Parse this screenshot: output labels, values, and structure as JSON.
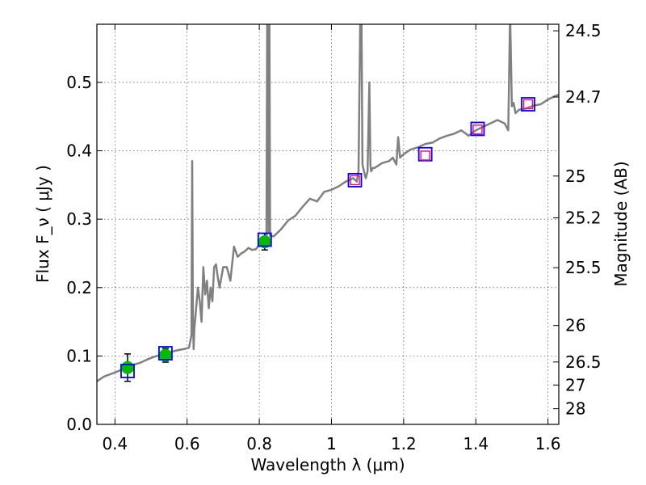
{
  "chart_data": {
    "type": "scatter",
    "xlabel": "Wavelength  λ (μm)",
    "ylabel": "Flux  F_ν  ( μJy )",
    "ylabel_right": "Magnitude (AB)",
    "xlim": [
      0.35,
      1.63
    ],
    "ylim": [
      0.0,
      0.585
    ],
    "grid": true,
    "x_ticks": [
      0.4,
      0.6,
      0.8,
      1.0,
      1.2,
      1.4,
      1.6
    ],
    "x_tick_labels": [
      "0.4",
      "0.6",
      "0.8",
      "1",
      "1.2",
      "1.4",
      "1.6"
    ],
    "y_ticks": [
      0.0,
      0.1,
      0.2,
      0.3,
      0.4,
      0.5
    ],
    "y_tick_labels": [
      "0.0",
      "0.1",
      "0.2",
      "0.3",
      "0.4",
      "0.5"
    ],
    "mag_ticks": [
      "24.5",
      "24.7",
      "25",
      "25.2",
      "25.5",
      "26",
      "26.5",
      "27",
      "28"
    ],
    "colors": {
      "spectrum": "#808080",
      "detection_fill": "#00bb00",
      "box": "#0000ff",
      "limit_box": "#ff0066",
      "errorbar": "#000000"
    },
    "series": [
      {
        "name": "model_spectrum",
        "kind": "line",
        "x": [
          0.35,
          0.37,
          0.39,
          0.41,
          0.43,
          0.45,
          0.47,
          0.49,
          0.51,
          0.53,
          0.55,
          0.57,
          0.59,
          0.605,
          0.612,
          0.614,
          0.616,
          0.618,
          0.62,
          0.625,
          0.63,
          0.635,
          0.64,
          0.645,
          0.65,
          0.655,
          0.66,
          0.665,
          0.67,
          0.675,
          0.68,
          0.685,
          0.69,
          0.7,
          0.71,
          0.72,
          0.73,
          0.74,
          0.75,
          0.76,
          0.77,
          0.78,
          0.79,
          0.8,
          0.81,
          0.815,
          0.82,
          0.822,
          0.824,
          0.826,
          0.828,
          0.83,
          0.84,
          0.86,
          0.88,
          0.9,
          0.92,
          0.94,
          0.96,
          0.98,
          1.0,
          1.02,
          1.04,
          1.06,
          1.07,
          1.075,
          1.08,
          1.083,
          1.086,
          1.09,
          1.095,
          1.1,
          1.105,
          1.108,
          1.11,
          1.115,
          1.12,
          1.14,
          1.16,
          1.17,
          1.18,
          1.185,
          1.19,
          1.2,
          1.22,
          1.24,
          1.26,
          1.28,
          1.3,
          1.32,
          1.34,
          1.36,
          1.38,
          1.4,
          1.42,
          1.44,
          1.46,
          1.48,
          1.49,
          1.495,
          1.5,
          1.505,
          1.51,
          1.52,
          1.54,
          1.56,
          1.58,
          1.6,
          1.62,
          1.63
        ],
        "y": [
          0.063,
          0.07,
          0.074,
          0.078,
          0.083,
          0.087,
          0.09,
          0.095,
          0.099,
          0.102,
          0.105,
          0.108,
          0.11,
          0.112,
          0.13,
          0.385,
          0.16,
          0.11,
          0.14,
          0.17,
          0.2,
          0.18,
          0.15,
          0.23,
          0.19,
          0.21,
          0.17,
          0.2,
          0.18,
          0.23,
          0.234,
          0.215,
          0.2,
          0.23,
          0.23,
          0.21,
          0.26,
          0.245,
          0.25,
          0.253,
          0.258,
          0.255,
          0.256,
          0.262,
          0.266,
          0.27,
          0.268,
          0.6,
          0.6,
          0.28,
          0.6,
          0.275,
          0.275,
          0.285,
          0.298,
          0.305,
          0.318,
          0.33,
          0.326,
          0.34,
          0.343,
          0.348,
          0.355,
          0.36,
          0.355,
          0.37,
          0.6,
          0.6,
          0.38,
          0.37,
          0.36,
          0.37,
          0.5,
          0.38,
          0.37,
          0.375,
          0.375,
          0.382,
          0.385,
          0.39,
          0.38,
          0.42,
          0.39,
          0.395,
          0.402,
          0.405,
          0.41,
          0.412,
          0.418,
          0.422,
          0.425,
          0.43,
          0.422,
          0.43,
          0.435,
          0.44,
          0.445,
          0.44,
          0.43,
          0.6,
          0.465,
          0.47,
          0.455,
          0.46,
          0.462,
          0.466,
          0.468,
          0.475,
          0.48,
          0.482
        ]
      },
      {
        "name": "detections",
        "kind": "points",
        "x": [
          0.435,
          0.54,
          0.815
        ],
        "y": [
          0.083,
          0.101,
          0.267
        ],
        "yerr": [
          0.02,
          0.01,
          0.012
        ]
      },
      {
        "name": "model_photometry",
        "kind": "boxes",
        "x": [
          0.435,
          0.54,
          0.815,
          1.065,
          1.26,
          1.405,
          1.545
        ],
        "y": [
          0.078,
          0.104,
          0.27,
          0.357,
          0.395,
          0.432,
          0.468
        ]
      },
      {
        "name": "limits",
        "kind": "boxes",
        "x": [
          1.065,
          1.26,
          1.405,
          1.545
        ],
        "y": [
          0.357,
          0.393,
          0.431,
          0.468
        ]
      }
    ]
  }
}
